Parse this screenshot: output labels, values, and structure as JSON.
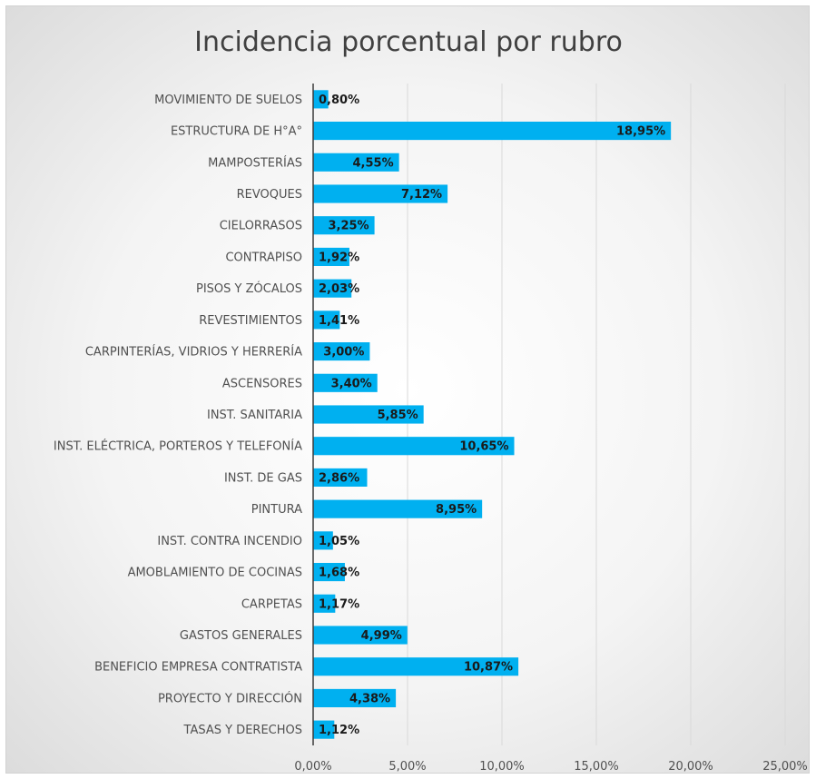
{
  "chart_data": {
    "type": "bar",
    "orientation": "horizontal",
    "title": "Incidencia porcentual por rubro",
    "xlabel": "",
    "ylabel": "",
    "categories": [
      "MOVIMIENTO DE SUELOS",
      "ESTRUCTURA DE H°A°",
      "MAMPOSTERÍAS",
      "REVOQUES",
      "CIELORRASOS",
      "CONTRAPISO",
      "PISOS Y ZÓCALOS",
      "REVESTIMIENTOS",
      "CARPINTERÍAS, VIDRIOS Y HERRERÍA",
      "ASCENSORES",
      "INST. SANITARIA",
      "INST. ELÉCTRICA, PORTEROS Y TELEFONÍA",
      "INST. DE GAS",
      "PINTURA",
      "INST. CONTRA INCENDIO",
      "AMOBLAMIENTO DE COCINAS",
      "CARPETAS",
      "GASTOS GENERALES",
      "BENEFICIO EMPRESA CONTRATISTA",
      "PROYECTO Y DIRECCIÓN",
      "TASAS Y DERECHOS"
    ],
    "values": [
      0.8,
      18.95,
      4.55,
      7.12,
      3.25,
      1.92,
      2.03,
      1.41,
      3.0,
      3.4,
      5.85,
      10.65,
      2.86,
      8.95,
      1.05,
      1.68,
      1.17,
      4.99,
      10.87,
      4.38,
      1.12
    ],
    "data_labels": [
      "0,80%",
      "18,95%",
      "4,55%",
      "7,12%",
      "3,25%",
      "1,92%",
      "2,03%",
      "1,41%",
      "3,00%",
      "3,40%",
      "5,85%",
      "10,65%",
      "2,86%",
      "8,95%",
      "1,05%",
      "1,68%",
      "1,17%",
      "4,99%",
      "10,87%",
      "4,38%",
      "1,12%"
    ],
    "xlim": [
      0,
      25
    ],
    "x_ticks": [
      0,
      5,
      10,
      15,
      20,
      25
    ],
    "x_tick_labels": [
      "0,00%",
      "5,00%",
      "10,00%",
      "15,00%",
      "20,00%",
      "25,00%"
    ],
    "grid": true,
    "legend": "none",
    "colors": {
      "bar": "#00b0f0",
      "grid": "#d9d9d9",
      "axis": "#3a3a3a"
    }
  }
}
